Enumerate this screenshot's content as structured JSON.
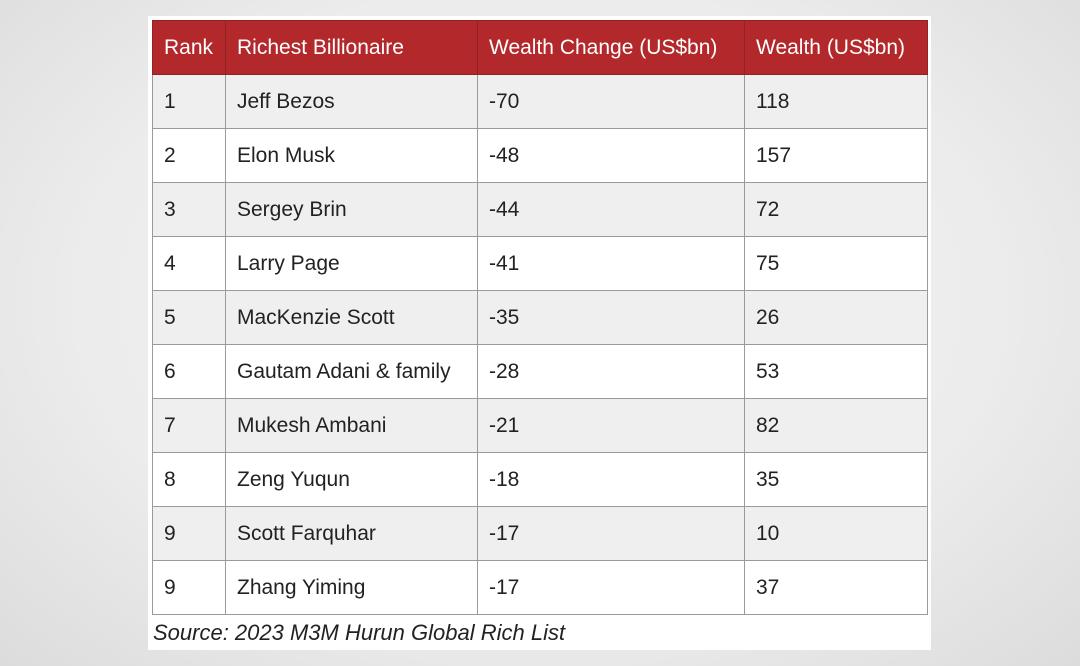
{
  "table": {
    "header": [
      "Rank",
      "Richest Billionaire",
      "Wealth Change (US$bn)",
      "Wealth (US$bn)"
    ],
    "rows": [
      [
        "1",
        "Jeff Bezos",
        "-70",
        "118"
      ],
      [
        "2",
        "Elon Musk",
        "-48",
        "157"
      ],
      [
        "3",
        "Sergey Brin",
        "-44",
        "72"
      ],
      [
        "4",
        "Larry Page",
        "-41",
        "75"
      ],
      [
        "5",
        "MacKenzie Scott",
        "-35",
        "26"
      ],
      [
        "6",
        "Gautam Adani & family",
        "-28",
        "53"
      ],
      [
        "7",
        "Mukesh Ambani",
        "-21",
        "82"
      ],
      [
        "8",
        "Zeng Yuqun",
        "-18",
        "35"
      ],
      [
        "9",
        "Scott Farquhar",
        "-17",
        "10"
      ],
      [
        "9",
        "Zhang Yiming",
        "-17",
        "37"
      ]
    ],
    "source": "Source: 2023 M3M Hurun Global Rich List"
  }
}
